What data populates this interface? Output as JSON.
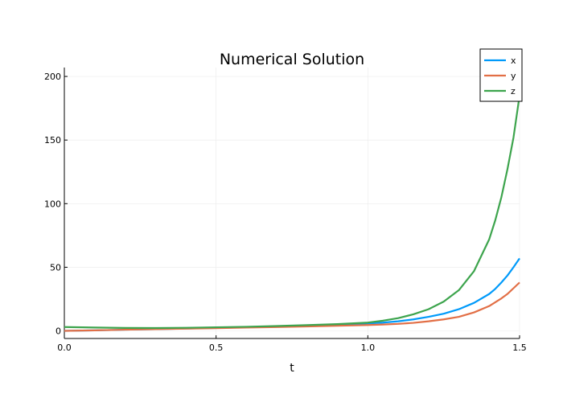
{
  "chart_data": {
    "type": "line",
    "title": "Numerical Solution",
    "xlabel": "t",
    "ylabel": "",
    "xlim": [
      0,
      1.5
    ],
    "ylim": [
      -6,
      207
    ],
    "xticks": [
      0.0,
      0.5,
      1.0,
      1.5
    ],
    "xtick_labels": [
      "0.0",
      "0.5",
      "1.0",
      "1.5"
    ],
    "yticks": [
      0,
      50,
      100,
      150,
      200
    ],
    "ytick_labels": [
      "0",
      "50",
      "100",
      "150",
      "200"
    ],
    "grid": true,
    "legend_position": "top-right",
    "x": [
      0.0,
      0.1,
      0.2,
      0.3,
      0.4,
      0.5,
      0.6,
      0.7,
      0.8,
      0.9,
      1.0,
      1.05,
      1.1,
      1.15,
      1.2,
      1.25,
      1.3,
      1.35,
      1.4,
      1.42,
      1.44,
      1.46,
      1.48,
      1.5
    ],
    "series": [
      {
        "name": "x",
        "color": "#009AFA",
        "values": [
          0.0,
          0.4,
          0.9,
          1.3,
          1.8,
          2.3,
          2.8,
          3.4,
          4.0,
          4.8,
          5.8,
          6.5,
          7.5,
          9.0,
          11.0,
          13.5,
          17.0,
          22.0,
          29.0,
          33.0,
          38.0,
          43.5,
          50.0,
          57.0
        ]
      },
      {
        "name": "y",
        "color": "#E26F46",
        "values": [
          0.0,
          0.4,
          0.9,
          1.3,
          1.7,
          2.1,
          2.6,
          3.0,
          3.5,
          4.0,
          4.6,
          5.0,
          5.5,
          6.3,
          7.5,
          9.0,
          11.0,
          14.5,
          19.5,
          22.5,
          25.5,
          29.0,
          33.5,
          38.0
        ]
      },
      {
        "name": "z",
        "color": "#3DA44D",
        "values": [
          3.0,
          2.6,
          2.3,
          2.2,
          2.4,
          2.8,
          3.2,
          3.8,
          4.5,
          5.3,
          6.5,
          8.0,
          10.0,
          13.0,
          17.0,
          23.0,
          32.0,
          47.0,
          72.0,
          87.0,
          105.0,
          127.0,
          152.0,
          185.0
        ]
      }
    ]
  }
}
